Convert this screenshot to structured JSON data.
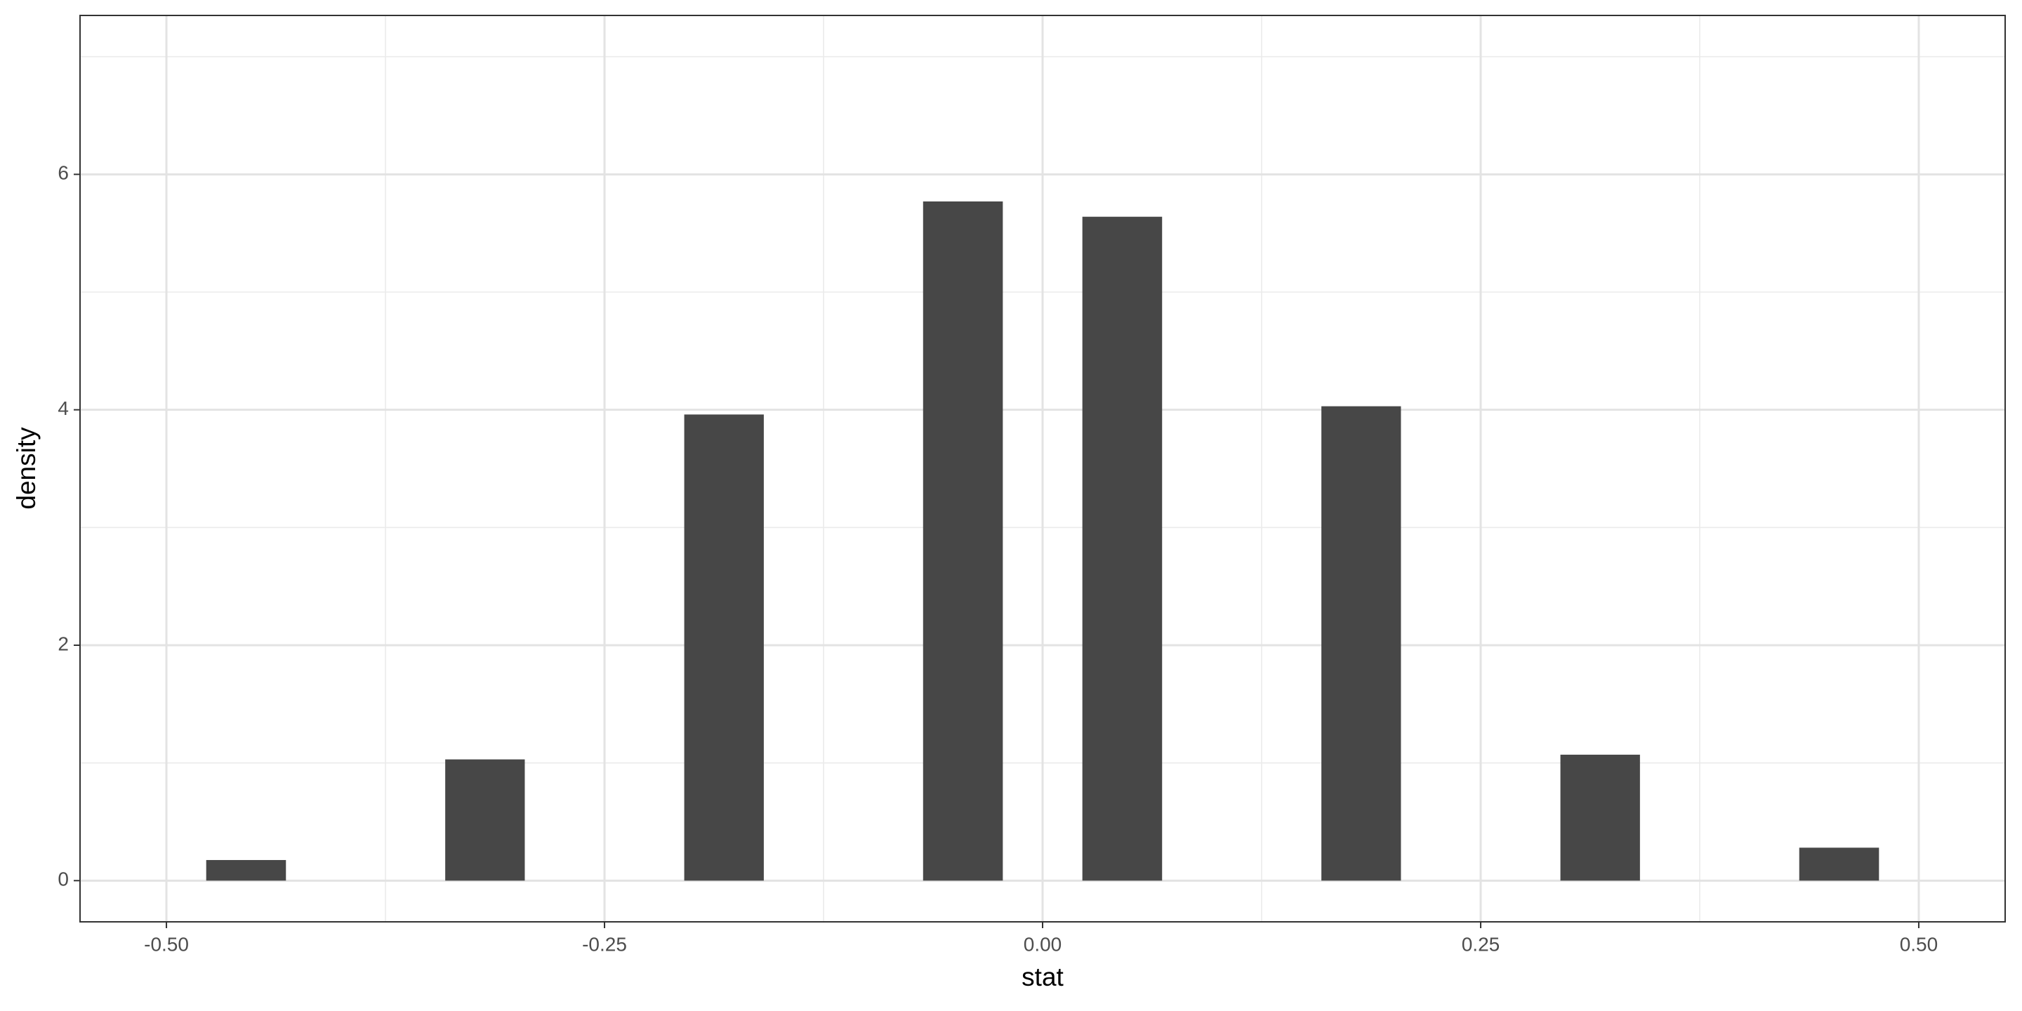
{
  "chart_data": {
    "type": "histogram",
    "x_label": "stat",
    "y_label": "density",
    "bins": [
      -0.4773,
      -0.4318,
      -0.3864,
      -0.3409,
      -0.2955,
      -0.25,
      -0.2045,
      -0.1591,
      -0.1136,
      -0.0682,
      -0.0227,
      0.0227,
      0.0682,
      0.1136,
      0.1591,
      0.2045,
      0.25,
      0.2955,
      0.3409,
      0.3864,
      0.4318,
      0.4773
    ],
    "values": [
      0.175,
      0,
      0,
      1.03,
      0,
      0,
      3.96,
      0,
      0,
      5.77,
      0,
      5.64,
      0,
      0,
      4.03,
      0,
      0,
      1.07,
      0,
      0,
      0.28
    ],
    "color": "#474747",
    "xlim": [
      -0.5493,
      0.5493
    ],
    "ylim": [
      -0.35,
      7.35
    ],
    "xticks": [
      {
        "value": -0.5,
        "label": "-0.50"
      },
      {
        "value": -0.25,
        "label": "-0.25"
      },
      {
        "value": 0,
        "label": "0.00"
      },
      {
        "value": 0.25,
        "label": "0.25"
      },
      {
        "value": 0.5,
        "label": "0.50"
      }
    ],
    "yticks": [
      0,
      2,
      4,
      6
    ],
    "grid": true
  }
}
